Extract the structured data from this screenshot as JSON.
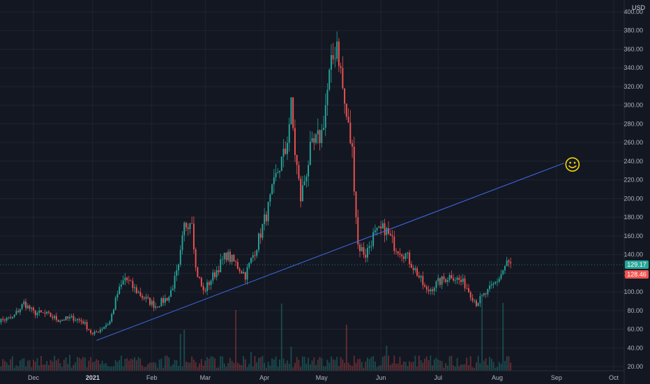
{
  "chart_data": {
    "type": "candlestick",
    "currency": "USD",
    "y_axis": {
      "min": 20,
      "max": 400,
      "ticks": [
        "400.00",
        "380.00",
        "360.00",
        "340.00",
        "320.00",
        "300.00",
        "280.00",
        "260.00",
        "240.00",
        "220.00",
        "200.00",
        "180.00",
        "160.00",
        "140.00",
        "120.00",
        "100.00",
        "80.00",
        "60.00",
        "40.00",
        "20.00"
      ]
    },
    "x_axis": {
      "labels": [
        {
          "text": "Dec",
          "date": "2020-12-01",
          "bold": false
        },
        {
          "text": "2021",
          "date": "2021-01-01",
          "bold": true
        },
        {
          "text": "Feb",
          "date": "2021-02-01",
          "bold": false
        },
        {
          "text": "Mar",
          "date": "2021-03-01",
          "bold": false
        },
        {
          "text": "Apr",
          "date": "2021-04-01",
          "bold": false
        },
        {
          "text": "May",
          "date": "2021-05-01",
          "bold": false
        },
        {
          "text": "Jun",
          "date": "2021-06-01",
          "bold": false
        },
        {
          "text": "Jul",
          "date": "2021-07-01",
          "bold": false
        },
        {
          "text": "Aug",
          "date": "2021-08-01",
          "bold": false
        },
        {
          "text": "Sep",
          "date": "2021-09-01",
          "bold": false
        },
        {
          "text": "Oct",
          "date": "2021-10-01",
          "bold": false
        }
      ]
    },
    "price_path": [
      [
        "2020-11-10",
        68
      ],
      [
        "2020-11-20",
        72
      ],
      [
        "2020-11-26",
        88
      ],
      [
        "2020-12-01",
        78
      ],
      [
        "2020-12-08",
        76
      ],
      [
        "2020-12-14",
        70
      ],
      [
        "2020-12-22",
        72
      ],
      [
        "2020-12-27",
        68
      ],
      [
        "2021-01-01",
        54
      ],
      [
        "2021-01-05",
        60
      ],
      [
        "2021-01-10",
        68
      ],
      [
        "2021-01-14",
        98
      ],
      [
        "2021-01-18",
        115
      ],
      [
        "2021-01-22",
        105
      ],
      [
        "2021-01-27",
        95
      ],
      [
        "2021-02-03",
        85
      ],
      [
        "2021-02-10",
        95
      ],
      [
        "2021-02-15",
        125
      ],
      [
        "2021-02-18",
        170
      ],
      [
        "2021-02-22",
        180
      ],
      [
        "2021-02-24",
        125
      ],
      [
        "2021-02-28",
        100
      ],
      [
        "2021-03-06",
        120
      ],
      [
        "2021-03-12",
        140
      ],
      [
        "2021-03-17",
        130
      ],
      [
        "2021-03-22",
        118
      ],
      [
        "2021-03-28",
        150
      ],
      [
        "2021-04-03",
        190
      ],
      [
        "2021-04-08",
        230
      ],
      [
        "2021-04-12",
        250
      ],
      [
        "2021-04-15",
        298
      ],
      [
        "2021-04-17",
        250
      ],
      [
        "2021-04-20",
        200
      ],
      [
        "2021-04-25",
        250
      ],
      [
        "2021-05-01",
        270
      ],
      [
        "2021-05-05",
        330
      ],
      [
        "2021-05-09",
        370
      ],
      [
        "2021-05-13",
        300
      ],
      [
        "2021-05-17",
        250
      ],
      [
        "2021-05-20",
        150
      ],
      [
        "2021-05-24",
        140
      ],
      [
        "2021-05-28",
        160
      ],
      [
        "2021-06-03",
        168
      ],
      [
        "2021-06-08",
        150
      ],
      [
        "2021-06-14",
        140
      ],
      [
        "2021-06-20",
        120
      ],
      [
        "2021-06-25",
        100
      ],
      [
        "2021-07-01",
        110
      ],
      [
        "2021-07-08",
        118
      ],
      [
        "2021-07-15",
        108
      ],
      [
        "2021-07-21",
        88
      ],
      [
        "2021-07-27",
        100
      ],
      [
        "2021-08-02",
        115
      ],
      [
        "2021-08-06",
        131
      ],
      [
        "2021-08-08",
        129
      ]
    ],
    "last_price": "129.17",
    "prev_price": "128.46",
    "trendline": {
      "start": {
        "date": "2021-01-03",
        "value": 48
      },
      "end": {
        "date": "2021-09-05",
        "value": 238
      },
      "color": "#3f6de8"
    },
    "annotation_icon": "smiley-face-icon",
    "colors": {
      "background": "#131722",
      "up": "#26a69a",
      "down": "#ef5350",
      "grid": "#1f2430",
      "axis_text": "#b2b5be",
      "last_badge": "#26a69a",
      "prev_badge": "#ef5350",
      "smiley": "#f5d90a"
    }
  }
}
